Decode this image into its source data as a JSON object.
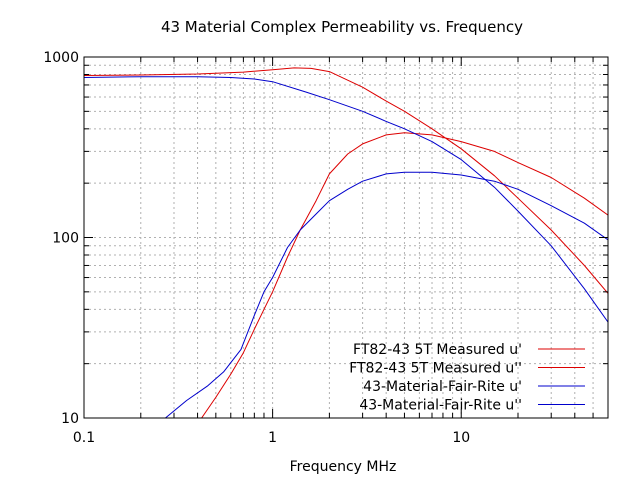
{
  "chart_data": {
    "type": "line",
    "title": "43 Material Complex Permeability vs. Frequency",
    "xlabel": "Frequency MHz",
    "ylabel": "",
    "x_scale": "log",
    "y_scale": "log",
    "xlim": [
      0.1,
      60
    ],
    "ylim": [
      10,
      1000
    ],
    "grid": true,
    "legend_position": "bottom-right",
    "x_ticks": [
      {
        "value": 0.1,
        "label": "0.1"
      },
      {
        "value": 1,
        "label": "1"
      },
      {
        "value": 10,
        "label": "10"
      }
    ],
    "y_ticks": [
      {
        "value": 10,
        "label": "10"
      },
      {
        "value": 100,
        "label": "100"
      },
      {
        "value": 1000,
        "label": "1000"
      }
    ],
    "series": [
      {
        "name": "FT82-43 5T Measured u'",
        "color": "#dd0000",
        "points": [
          [
            0.1,
            790
          ],
          [
            0.2,
            795
          ],
          [
            0.4,
            805
          ],
          [
            0.7,
            825
          ],
          [
            1.0,
            850
          ],
          [
            1.3,
            870
          ],
          [
            1.6,
            865
          ],
          [
            2.0,
            830
          ],
          [
            3.0,
            680
          ],
          [
            4.0,
            570
          ],
          [
            5.0,
            500
          ],
          [
            7.0,
            400
          ],
          [
            10.0,
            310
          ],
          [
            15.0,
            220
          ],
          [
            20.0,
            165
          ],
          [
            30.0,
            110
          ],
          [
            45.0,
            70
          ],
          [
            60.0,
            49
          ]
        ]
      },
      {
        "name": "FT82-43 5T Measured u''",
        "color": "#dd0000",
        "points": [
          [
            0.42,
            10
          ],
          [
            0.5,
            13
          ],
          [
            0.6,
            17.5
          ],
          [
            0.7,
            23
          ],
          [
            0.8,
            31
          ],
          [
            0.9,
            40
          ],
          [
            1.0,
            50
          ],
          [
            1.2,
            78
          ],
          [
            1.4,
            110
          ],
          [
            1.7,
            160
          ],
          [
            2.0,
            225
          ],
          [
            2.5,
            290
          ],
          [
            3.0,
            330
          ],
          [
            4.0,
            370
          ],
          [
            5.0,
            380
          ],
          [
            7.0,
            370
          ],
          [
            10.0,
            340
          ],
          [
            15.0,
            300
          ],
          [
            20.0,
            260
          ],
          [
            30.0,
            215
          ],
          [
            45.0,
            165
          ],
          [
            60.0,
            133
          ]
        ]
      },
      {
        "name": "43-Material-Fair-Rite u'",
        "color": "#0000cc",
        "points": [
          [
            0.1,
            770
          ],
          [
            0.2,
            778
          ],
          [
            0.4,
            778
          ],
          [
            0.6,
            770
          ],
          [
            0.8,
            755
          ],
          [
            1.0,
            730
          ],
          [
            1.5,
            640
          ],
          [
            2.0,
            580
          ],
          [
            3.0,
            500
          ],
          [
            4.0,
            440
          ],
          [
            5.0,
            400
          ],
          [
            7.0,
            340
          ],
          [
            10.0,
            270
          ],
          [
            15.0,
            190
          ],
          [
            20.0,
            140
          ],
          [
            30.0,
            90
          ],
          [
            45.0,
            52
          ],
          [
            60.0,
            34
          ]
        ]
      },
      {
        "name": "43-Material-Fair-Rite u''",
        "color": "#0000cc",
        "points": [
          [
            0.27,
            10
          ],
          [
            0.35,
            12.5
          ],
          [
            0.45,
            15
          ],
          [
            0.55,
            18
          ],
          [
            0.68,
            24
          ],
          [
            0.8,
            37
          ],
          [
            0.9,
            50
          ],
          [
            1.0,
            60
          ],
          [
            1.2,
            88
          ],
          [
            1.4,
            110
          ],
          [
            1.7,
            135
          ],
          [
            2.0,
            160
          ],
          [
            2.5,
            185
          ],
          [
            3.0,
            205
          ],
          [
            4.0,
            225
          ],
          [
            5.0,
            230
          ],
          [
            7.0,
            230
          ],
          [
            10.0,
            222
          ],
          [
            15.0,
            205
          ],
          [
            20.0,
            185
          ],
          [
            30.0,
            150
          ],
          [
            45.0,
            120
          ],
          [
            60.0,
            97
          ]
        ]
      }
    ]
  }
}
